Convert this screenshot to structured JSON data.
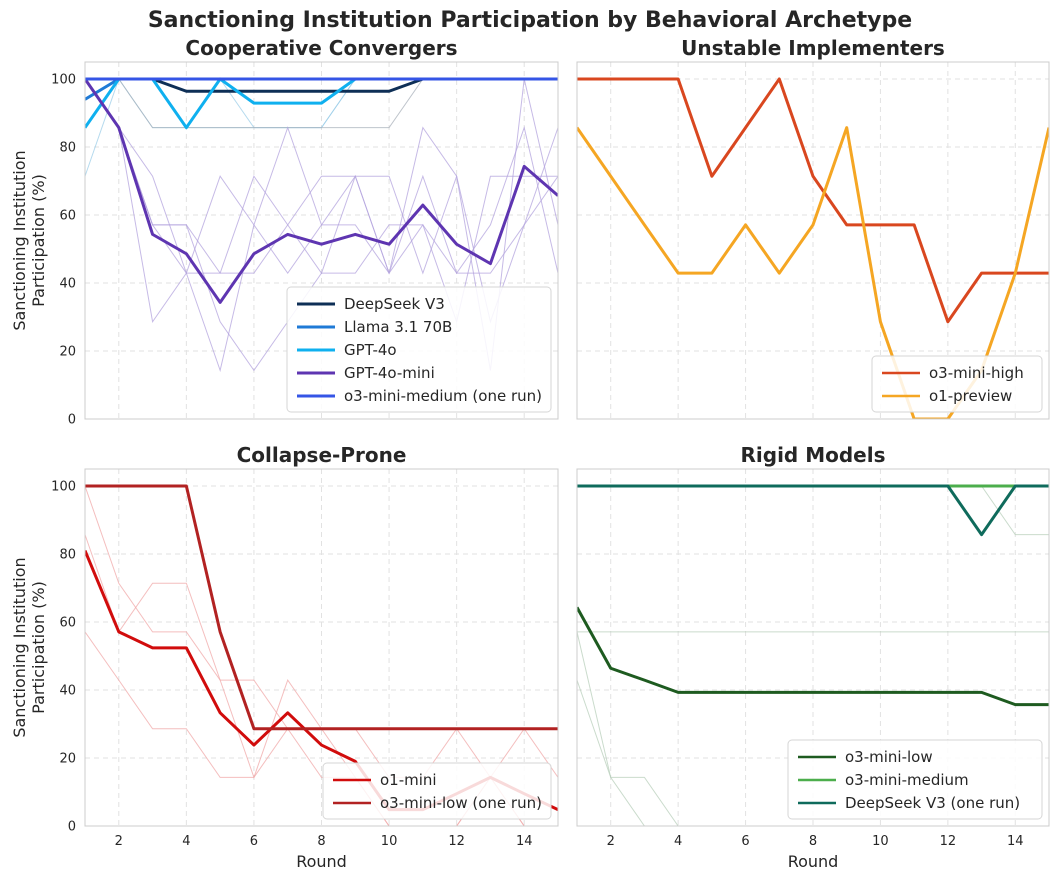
{
  "figure_title": "Sanctioning Institution Participation by Behavioral Archetype",
  "chart_data": [
    {
      "type": "line",
      "title": "Cooperative Convergers",
      "xlabel": "",
      "ylabel": "Sanctioning Institution Participation (%)",
      "ylabel_lines": [
        "Sanctioning Institution",
        "Participation (%)"
      ],
      "xlim": [
        1,
        15
      ],
      "ylim": [
        0,
        105
      ],
      "xticks": [
        "2",
        "4",
        "6",
        "8",
        "10",
        "12",
        "14"
      ],
      "show_xticklabels": false,
      "yticks": [
        "0",
        "20",
        "40",
        "60",
        "80",
        "100"
      ],
      "show_yticklabels": true,
      "grid": true,
      "legend_position": "lower-right",
      "x": [
        1,
        2,
        3,
        4,
        5,
        6,
        7,
        8,
        9,
        10,
        11,
        12,
        13,
        14,
        15
      ],
      "series": [
        {
          "name": "DeepSeek V3",
          "color": "#0e2f56",
          "values": [
            100,
            100,
            100,
            96.4,
            96.4,
            96.4,
            96.4,
            96.4,
            96.4,
            96.4,
            100,
            100,
            100,
            100,
            100
          ]
        },
        {
          "name": "Llama 3.1 70B",
          "color": "#1f7ad6",
          "values": [
            94,
            100,
            100,
            100,
            100,
            100,
            100,
            100,
            100,
            100,
            100,
            100,
            100,
            100,
            100
          ]
        },
        {
          "name": "GPT-4o",
          "color": "#0fb0ef",
          "values": [
            85.7,
            100,
            100,
            85.7,
            100,
            92.9,
            92.9,
            92.9,
            100,
            100,
            100,
            100,
            100,
            100,
            100
          ]
        },
        {
          "name": "GPT-4o-mini",
          "color": "#5e35b1",
          "values": [
            100,
            85.7,
            54.3,
            48.6,
            34.3,
            48.6,
            54.3,
            51.4,
            54.3,
            51.4,
            62.9,
            51.4,
            45.7,
            74.3,
            65.7
          ]
        },
        {
          "name": "o3-mini-medium (one run)",
          "color": "#3555e6",
          "values": [
            100,
            100,
            100,
            100,
            100,
            100,
            100,
            100,
            100,
            100,
            100,
            100,
            100,
            100,
            100
          ]
        }
      ],
      "faint_runs": [
        {
          "color": "#9ccde8",
          "values": [
            71.4,
            100,
            85.7,
            85.7,
            85.7,
            85.7,
            85.7,
            85.7,
            100,
            100,
            100,
            100,
            100,
            100,
            100
          ]
        },
        {
          "color": "#9ccde8",
          "values": [
            85.7,
            100,
            100,
            85.7,
            100,
            85.7,
            85.7,
            85.7,
            100,
            100,
            100,
            100,
            100,
            100,
            100
          ]
        },
        {
          "color": "#a8b0ba",
          "values": [
            100,
            100,
            85.7,
            85.7,
            85.7,
            85.7,
            85.7,
            85.7,
            85.7,
            85.7,
            100,
            100,
            100,
            100,
            100
          ]
        },
        {
          "color": "#b3a3dd",
          "values": [
            100,
            85.7,
            71.4,
            42.9,
            14.3,
            57.1,
            85.7,
            57.1,
            71.4,
            42.9,
            71.4,
            42.9,
            57.1,
            85.7,
            42.9
          ]
        },
        {
          "color": "#b3a3dd",
          "values": [
            100,
            85.7,
            57.1,
            57.1,
            42.9,
            42.9,
            57.1,
            71.4,
            71.4,
            71.4,
            42.9,
            71.4,
            28.6,
            57.1,
            71.4
          ]
        },
        {
          "color": "#b3a3dd",
          "values": [
            100,
            85.7,
            28.6,
            42.9,
            71.4,
            57.1,
            42.9,
            57.1,
            57.1,
            42.9,
            85.7,
            71.4,
            14.3,
            100,
            57.1
          ]
        },
        {
          "color": "#b3a3dd",
          "values": [
            100,
            85.7,
            57.1,
            57.1,
            28.6,
            14.3,
            28.6,
            42.9,
            42.9,
            57.1,
            57.1,
            42.9,
            42.9,
            57.1,
            85.7
          ]
        },
        {
          "color": "#b3a3dd",
          "values": [
            100,
            85.7,
            57.1,
            42.9,
            42.9,
            71.4,
            57.1,
            42.9,
            71.4,
            42.9,
            57.1,
            28.6,
            71.4,
            71.4,
            71.4
          ]
        }
      ]
    },
    {
      "type": "line",
      "title": "Unstable Implementers",
      "xlabel": "",
      "ylabel": "",
      "xlim": [
        1,
        15
      ],
      "ylim": [
        0,
        105
      ],
      "xticks": [
        "2",
        "4",
        "6",
        "8",
        "10",
        "12",
        "14"
      ],
      "show_xticklabels": false,
      "yticks": [
        "0",
        "20",
        "40",
        "60",
        "80",
        "100"
      ],
      "show_yticklabels": false,
      "grid": true,
      "legend_position": "lower-right",
      "x": [
        1,
        2,
        3,
        4,
        5,
        6,
        7,
        8,
        9,
        10,
        11,
        12,
        13,
        14,
        15
      ],
      "series": [
        {
          "name": "o3-mini-high",
          "color": "#d9471f",
          "values": [
            100,
            100,
            100,
            100,
            71.4,
            85.7,
            100,
            71.4,
            57.1,
            57.1,
            57.1,
            28.6,
            42.9,
            42.9,
            42.9
          ]
        },
        {
          "name": "o1-preview",
          "color": "#f5a623",
          "values": [
            85.7,
            71.4,
            57.1,
            42.9,
            42.9,
            57.1,
            42.9,
            57.1,
            85.7,
            28.6,
            0,
            0,
            14.3,
            42.9,
            85.7
          ]
        }
      ],
      "faint_runs": []
    },
    {
      "type": "line",
      "title": "Collapse-Prone",
      "xlabel": "Round",
      "ylabel": "Sanctioning Institution Participation (%)",
      "ylabel_lines": [
        "Sanctioning Institution",
        "Participation (%)"
      ],
      "xlim": [
        1,
        15
      ],
      "ylim": [
        0,
        105
      ],
      "xticks": [
        "2",
        "4",
        "6",
        "8",
        "10",
        "12",
        "14"
      ],
      "show_xticklabels": true,
      "yticks": [
        "0",
        "20",
        "40",
        "60",
        "80",
        "100"
      ],
      "show_yticklabels": true,
      "grid": true,
      "legend_position": "lower-right",
      "x": [
        1,
        2,
        3,
        4,
        5,
        6,
        7,
        8,
        9,
        10,
        11,
        12,
        13,
        14,
        15
      ],
      "series": [
        {
          "name": "o1-mini",
          "color": "#d10c0c",
          "values": [
            81,
            57.1,
            52.4,
            52.4,
            33.3,
            23.8,
            33.3,
            23.8,
            19,
            4.8,
            4.8,
            9.5,
            14.3,
            9.5,
            4.8
          ]
        },
        {
          "name": "o3-mini-low (one run)",
          "color": "#b22222",
          "values": [
            100,
            100,
            100,
            100,
            57.1,
            28.6,
            28.6,
            28.6,
            28.6,
            28.6,
            28.6,
            28.6,
            28.6,
            28.6,
            28.6
          ]
        }
      ],
      "faint_runs": [
        {
          "color": "#f0a8a8",
          "values": [
            100,
            71.4,
            57.1,
            57.1,
            42.9,
            42.9,
            28.6,
            28.6,
            14.3,
            0,
            0,
            0,
            14.3,
            0,
            0
          ]
        },
        {
          "color": "#f0a8a8",
          "values": [
            85.7,
            57.1,
            71.4,
            71.4,
            42.9,
            14.3,
            42.9,
            28.6,
            28.6,
            14.3,
            14.3,
            28.6,
            14.3,
            28.6,
            14.3
          ]
        },
        {
          "color": "#f0a8a8",
          "values": [
            57.1,
            42.9,
            28.6,
            28.6,
            14.3,
            14.3,
            28.6,
            14.3,
            14.3,
            0,
            0,
            0,
            14.3,
            0,
            0
          ]
        }
      ]
    },
    {
      "type": "line",
      "title": "Rigid Models",
      "xlabel": "Round",
      "ylabel": "",
      "xlim": [
        1,
        15
      ],
      "ylim": [
        0,
        105
      ],
      "xticks": [
        "2",
        "4",
        "6",
        "8",
        "10",
        "12",
        "14"
      ],
      "show_xticklabels": true,
      "yticks": [
        "0",
        "20",
        "40",
        "60",
        "80",
        "100"
      ],
      "show_yticklabels": false,
      "grid": true,
      "legend_position": "lower-right",
      "x": [
        1,
        2,
        3,
        4,
        5,
        6,
        7,
        8,
        9,
        10,
        11,
        12,
        13,
        14,
        15
      ],
      "series": [
        {
          "name": "o3-mini-low",
          "color": "#1e5b20",
          "values": [
            64.3,
            46.4,
            42.9,
            39.3,
            39.3,
            39.3,
            39.3,
            39.3,
            39.3,
            39.3,
            39.3,
            39.3,
            39.3,
            35.7,
            35.7
          ]
        },
        {
          "name": "o3-mini-medium",
          "color": "#4cae4c",
          "values": [
            100,
            100,
            100,
            100,
            100,
            100,
            100,
            100,
            100,
            100,
            100,
            100,
            100,
            100,
            100
          ]
        },
        {
          "name": "DeepSeek V3 (one run)",
          "color": "#0f6b5c",
          "values": [
            100,
            100,
            100,
            100,
            100,
            100,
            100,
            100,
            100,
            100,
            100,
            100,
            85.7,
            100,
            100
          ]
        }
      ],
      "faint_runs": [
        {
          "color": "#b8cfbb",
          "values": [
            57.1,
            57.1,
            57.1,
            57.1,
            57.1,
            57.1,
            57.1,
            57.1,
            57.1,
            57.1,
            57.1,
            57.1,
            57.1,
            57.1,
            57.1
          ]
        },
        {
          "color": "#b8cfbb",
          "values": [
            57.1,
            14.3,
            14.3,
            0,
            0,
            0,
            0,
            0,
            0,
            0,
            0,
            0,
            0,
            0,
            0
          ]
        },
        {
          "color": "#b8cfbb",
          "values": [
            42.9,
            14.3,
            0,
            0,
            0,
            0,
            0,
            0,
            0,
            0,
            0,
            0,
            0,
            0,
            0
          ]
        },
        {
          "color": "#b8cfbb",
          "values": [
            100,
            100,
            100,
            100,
            100,
            100,
            100,
            100,
            100,
            100,
            100,
            100,
            100,
            85.7,
            85.7
          ]
        }
      ]
    }
  ]
}
